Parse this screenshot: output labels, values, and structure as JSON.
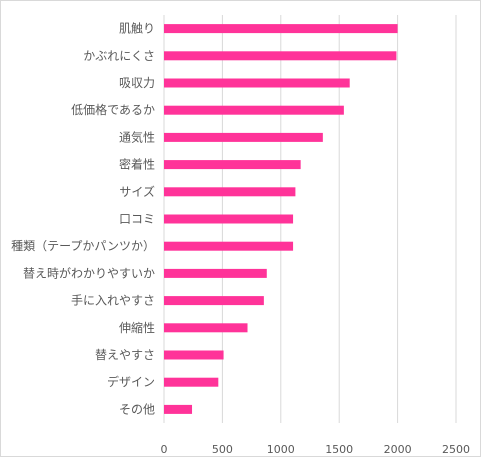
{
  "chart_data": {
    "type": "bar",
    "orientation": "horizontal",
    "title": "",
    "xlabel": "",
    "ylabel": "",
    "categories": [
      "肌触り",
      "かぶれにくさ",
      "吸収力",
      "低価格であるか",
      "通気性",
      "密着性",
      "サイズ",
      "口コミ",
      "種類（テープかパンツか）",
      "替え時がわかりやすいか",
      "手に入れやすさ",
      "伸縮性",
      "替えやすさ",
      "デザイン",
      "その他"
    ],
    "values": [
      2000,
      1990,
      1590,
      1540,
      1360,
      1170,
      1125,
      1105,
      1105,
      880,
      855,
      715,
      510,
      465,
      240
    ],
    "xlim": [
      0,
      2500
    ],
    "xticks": [
      0,
      500,
      1000,
      1500,
      2000,
      2500
    ],
    "grid": true,
    "legend": "none",
    "bar_color": "#ff3399"
  }
}
